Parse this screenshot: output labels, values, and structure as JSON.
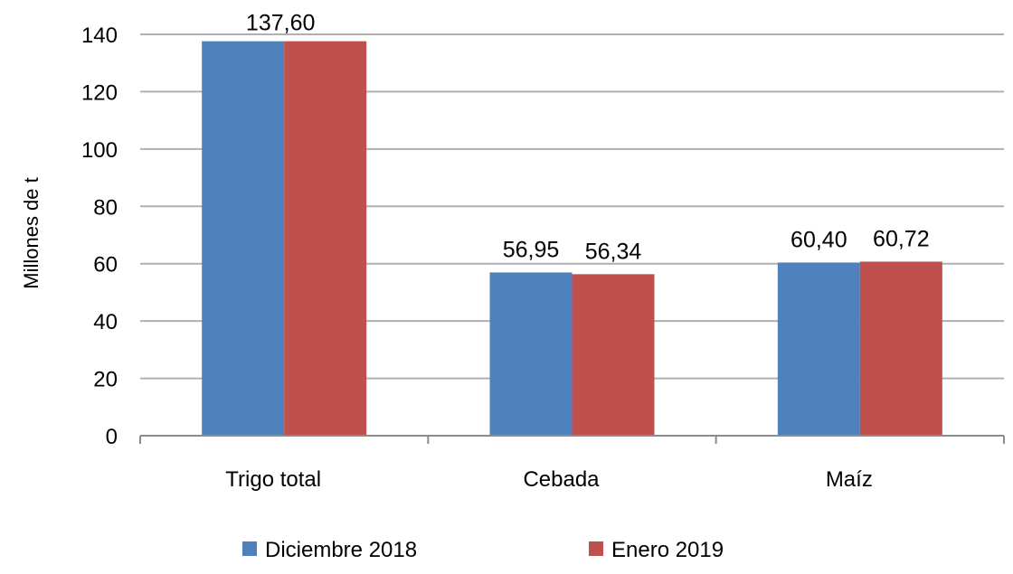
{
  "chart_data": {
    "type": "bar",
    "title": "",
    "xlabel": "",
    "ylabel": "Millones de t",
    "ylim": [
      0,
      140
    ],
    "yticks": [
      0,
      20,
      40,
      60,
      80,
      100,
      120,
      140
    ],
    "grid": true,
    "legend_position": "bottom",
    "categories": [
      "Trigo total",
      "Cebada",
      "Maíz"
    ],
    "series": [
      {
        "name": "Diciembre 2018",
        "color": "#4f81bd",
        "values": [
          137.6,
          56.95,
          60.4
        ],
        "labels": [
          "137,60",
          "56,95",
          "60,40"
        ]
      },
      {
        "name": "Enero 2019",
        "color": "#c0504d",
        "values": [
          137.6,
          56.34,
          60.72
        ],
        "labels": [
          "137,60",
          "56,34",
          "60,72"
        ]
      }
    ]
  }
}
